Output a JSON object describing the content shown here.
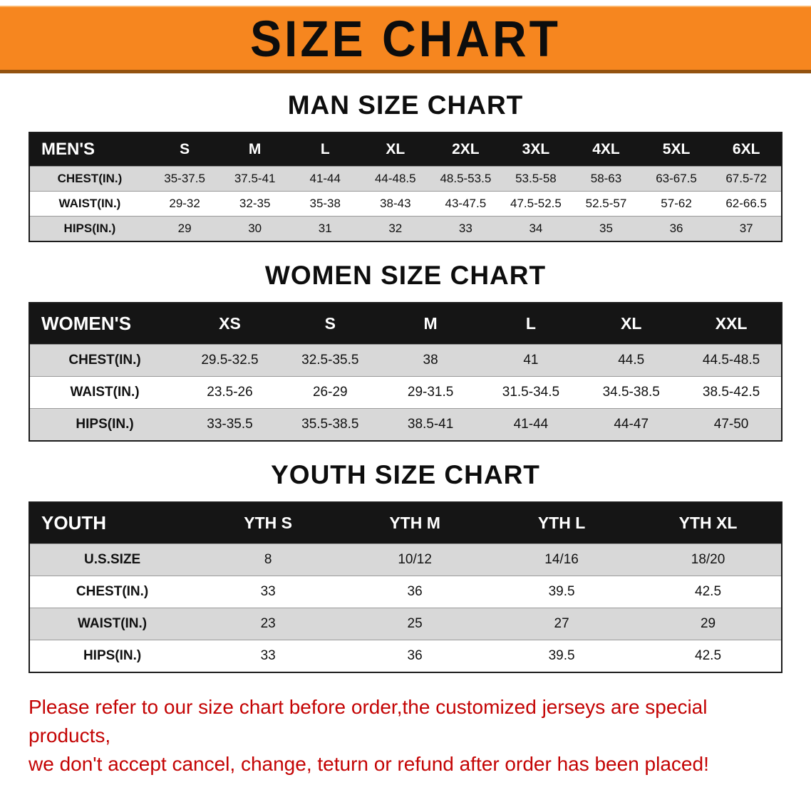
{
  "banner": {
    "title": "SIZE CHART"
  },
  "colors": {
    "banner_orange": "#F6861F",
    "table_header_black": "#151515",
    "row_gray": "#D8D8D8",
    "footer_red": "#C40404"
  },
  "sections": [
    {
      "id": "men",
      "title": "MAN SIZE CHART",
      "header": [
        "MEN'S",
        "S",
        "M",
        "L",
        "XL",
        "2XL",
        "3XL",
        "4XL",
        "5XL",
        "6XL"
      ],
      "rows": [
        [
          "CHEST(IN.)",
          "35-37.5",
          "37.5-41",
          "41-44",
          "44-48.5",
          "48.5-53.5",
          "53.5-58",
          "58-63",
          "63-67.5",
          "67.5-72"
        ],
        [
          "WAIST(IN.)",
          "29-32",
          "32-35",
          "35-38",
          "38-43",
          "43-47.5",
          "47.5-52.5",
          "52.5-57",
          "57-62",
          "62-66.5"
        ],
        [
          "HIPS(IN.)",
          "29",
          "30",
          "31",
          "32",
          "33",
          "34",
          "35",
          "36",
          "37"
        ]
      ]
    },
    {
      "id": "women",
      "title": "WOMEN SIZE CHART",
      "header": [
        "WOMEN'S",
        "XS",
        "S",
        "M",
        "L",
        "XL",
        "XXL"
      ],
      "rows": [
        [
          "CHEST(IN.)",
          "29.5-32.5",
          "32.5-35.5",
          "38",
          "41",
          "44.5",
          "44.5-48.5"
        ],
        [
          "WAIST(IN.)",
          "23.5-26",
          "26-29",
          "29-31.5",
          "31.5-34.5",
          "34.5-38.5",
          "38.5-42.5"
        ],
        [
          "HIPS(IN.)",
          "33-35.5",
          "35.5-38.5",
          "38.5-41",
          "41-44",
          "44-47",
          "47-50"
        ]
      ]
    },
    {
      "id": "youth",
      "title": "YOUTH SIZE CHART",
      "header": [
        "YOUTH",
        "YTH S",
        "YTH M",
        "YTH L",
        "YTH XL"
      ],
      "rows": [
        [
          "U.S.SIZE",
          "8",
          "10/12",
          "14/16",
          "18/20"
        ],
        [
          "CHEST(IN.)",
          "33",
          "36",
          "39.5",
          "42.5"
        ],
        [
          "WAIST(IN.)",
          "23",
          "25",
          "27",
          "29"
        ],
        [
          "HIPS(IN.)",
          "33",
          "36",
          "39.5",
          "42.5"
        ]
      ]
    }
  ],
  "footer": {
    "lines": [
      "Please refer to our size chart before order,the customized jerseys are special products,",
      "we don't accept cancel, change, teturn or refund after order has been placed!"
    ]
  }
}
